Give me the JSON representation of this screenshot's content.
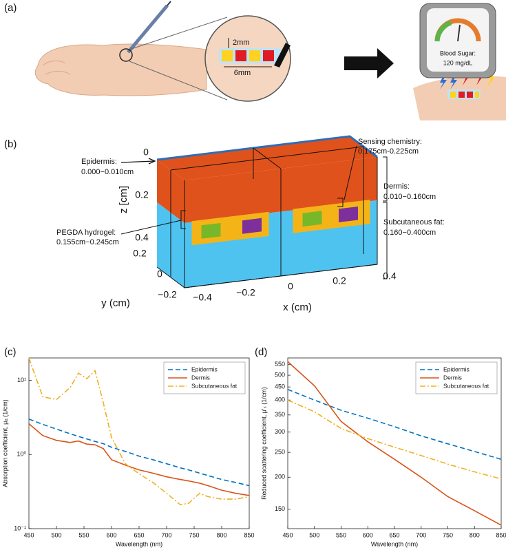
{
  "panel_a": {
    "label": "(a)",
    "gap_label": "2mm",
    "width_label": "6mm",
    "meter_title": "Blood Sugar:",
    "meter_reading": "120 mg/dL"
  },
  "panel_b": {
    "label": "(b)",
    "z_label": "z [cm]",
    "y_label": "y (cm)",
    "x_label": "x (cm)",
    "z_ticks": [
      "0",
      "0.2",
      "0.4"
    ],
    "y_ticks": [
      "0.2",
      "0",
      "−0.2"
    ],
    "x_ticks": [
      "−0.4",
      "−0.2",
      "0",
      "0.2",
      "0.4"
    ],
    "annotations": {
      "epidermis": [
        "Epidermis:",
        "0.000−0.010cm"
      ],
      "sensing": [
        "Sensing chemistry:",
        "0.175cm-0.225cm"
      ],
      "dermis": [
        "Dermis:",
        "0.010−0.160cm"
      ],
      "hydrogel": [
        "PEGDA hydrogel:",
        "0.155cm−0.245cm"
      ],
      "fat": [
        "Subcutaneous fat:",
        "0.160−0.400cm"
      ]
    }
  },
  "chart_data": [
    {
      "type": "line",
      "panel_label": "(c)",
      "x_label": "Wavelength (nm)",
      "y_label": "Absorption coefficient, μₐ (1/cm)",
      "x": [
        450,
        475,
        500,
        525,
        540,
        555,
        570,
        585,
        600,
        625,
        650,
        675,
        700,
        725,
        740,
        760,
        775,
        800,
        825,
        850
      ],
      "series": [
        {
          "name": "Epidermis",
          "color": "#0072bd",
          "line_style": "dashed",
          "values": [
            3.0,
            2.55,
            2.2,
            1.9,
            1.75,
            1.62,
            1.5,
            1.4,
            1.25,
            1.1,
            0.95,
            0.85,
            0.75,
            0.66,
            0.62,
            0.56,
            0.52,
            0.46,
            0.42,
            0.38
          ]
        },
        {
          "name": "Dermis",
          "color": "#d95319",
          "line_style": "solid",
          "values": [
            2.6,
            1.8,
            1.55,
            1.45,
            1.52,
            1.38,
            1.35,
            1.2,
            0.85,
            0.72,
            0.62,
            0.56,
            0.5,
            0.46,
            0.44,
            0.41,
            0.38,
            0.33,
            0.3,
            0.28
          ]
        },
        {
          "name": "Subcutaneous fat",
          "color": "#edb120",
          "line_style": "dash-dot",
          "values": [
            20,
            6,
            5.5,
            8,
            12.5,
            10.5,
            13.5,
            5,
            1.7,
            0.75,
            0.55,
            0.42,
            0.3,
            0.21,
            0.22,
            0.3,
            0.27,
            0.25,
            0.25,
            0.27
          ]
        }
      ],
      "xlim": [
        450,
        850
      ],
      "xticks": [
        450,
        500,
        550,
        600,
        650,
        700,
        750,
        800,
        850
      ],
      "ylim": [
        0.1,
        20
      ],
      "yticks": [
        {
          "value": 0.1,
          "label": "10⁻¹"
        },
        {
          "value": 1,
          "label": "10⁰"
        },
        {
          "value": 10,
          "label": "10¹"
        }
      ],
      "log_y": true,
      "legend": "upper right"
    },
    {
      "type": "line",
      "panel_label": "(d)",
      "x_label": "Wavelength (nm)",
      "y_label": "Reduced scattering coefficient, μ′ₛ (1/cm)",
      "x": [
        450,
        500,
        550,
        600,
        650,
        700,
        750,
        800,
        850
      ],
      "series": [
        {
          "name": "Epidermis",
          "color": "#0072bd",
          "line_style": "dashed",
          "values": [
            440,
            400,
            365,
            340,
            315,
            290,
            270,
            252,
            235
          ]
        },
        {
          "name": "Dermis",
          "color": "#d95319",
          "line_style": "solid",
          "values": [
            565,
            455,
            330,
            275,
            235,
            200,
            168,
            148,
            130
          ]
        },
        {
          "name": "Subcutaneous fat",
          "color": "#edb120",
          "line_style": "dash-dot",
          "values": [
            400,
            360,
            310,
            283,
            262,
            243,
            225,
            210,
            197
          ]
        }
      ],
      "xlim": [
        450,
        850
      ],
      "xticks": [
        450,
        500,
        550,
        600,
        650,
        700,
        750,
        800,
        850
      ],
      "ylim": [
        126,
        584
      ],
      "yticks": [
        150,
        200,
        250,
        300,
        350,
        400,
        450,
        500,
        550
      ],
      "log_y": true,
      "legend": "upper right"
    }
  ]
}
